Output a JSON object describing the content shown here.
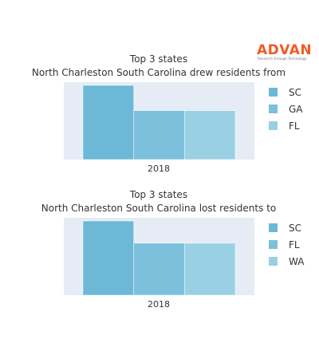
{
  "logo": {
    "name": "ADVAN",
    "tagline": "Research through Technology",
    "color": "#f05a28"
  },
  "chart_data": [
    {
      "type": "bar",
      "title": "Top 3 states",
      "subtitle": "North Charleston South Carolina drew residents from",
      "categories": [
        "2018"
      ],
      "series": [
        {
          "name": "SC",
          "values": [
            1.0
          ],
          "color": "#6cb8d6"
        },
        {
          "name": "GA",
          "values": [
            0.66
          ],
          "color": "#7cc0dc"
        },
        {
          "name": "FL",
          "values": [
            0.66
          ],
          "color": "#99d0e4"
        }
      ],
      "xlabel": "",
      "ylabel": "",
      "ylim": [
        0,
        1.0
      ],
      "grid": false,
      "legend": "right",
      "plot_bg": "#e5ecf6"
    },
    {
      "type": "bar",
      "title": "Top 3 states",
      "subtitle": "North Charleston South Carolina lost residents to",
      "categories": [
        "2018"
      ],
      "series": [
        {
          "name": "SC",
          "values": [
            1.0
          ],
          "color": "#6cb8d6"
        },
        {
          "name": "FL",
          "values": [
            0.7
          ],
          "color": "#7cc0dc"
        },
        {
          "name": "WA",
          "values": [
            0.7
          ],
          "color": "#99d0e4"
        }
      ],
      "xlabel": "",
      "ylabel": "",
      "ylim": [
        0,
        1.0
      ],
      "grid": false,
      "legend": "right",
      "plot_bg": "#e5ecf6"
    }
  ]
}
